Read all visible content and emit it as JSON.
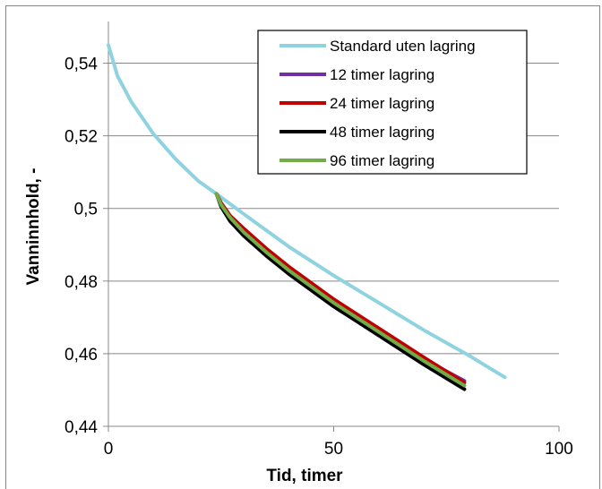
{
  "chart_data": {
    "type": "line",
    "title": "",
    "xlabel": "Tid, timer",
    "ylabel": "Vanninnhold, -",
    "xlim": [
      0,
      100
    ],
    "ylim": [
      0.44,
      0.55
    ],
    "xticks": [
      0,
      50,
      100
    ],
    "xtick_labels": [
      "0",
      "50",
      "100"
    ],
    "yticks": [
      0.44,
      0.46,
      0.48,
      0.5,
      0.52,
      0.54
    ],
    "ytick_labels": [
      "0,44",
      "0,46",
      "0,48",
      "0,5",
      "0,52",
      "0,54"
    ],
    "grid": "horizontal",
    "legend_position": "top-right",
    "series": [
      {
        "name": "Standard uten lagring",
        "color": "#8fd3e0",
        "x": [
          0,
          2,
          5,
          10,
          15,
          20,
          24,
          30,
          40,
          50,
          60,
          70,
          80,
          88
        ],
        "y": [
          0.545,
          0.5365,
          0.5295,
          0.5205,
          0.5135,
          0.5075,
          0.504,
          0.4985,
          0.4895,
          0.4815,
          0.474,
          0.4665,
          0.4595,
          0.4535
        ]
      },
      {
        "name": "12 timer lagring",
        "color": "#7030a0",
        "x": [
          24,
          25,
          27,
          30,
          35,
          40,
          50,
          60,
          70,
          79
        ],
        "y": [
          0.504,
          0.5015,
          0.498,
          0.494,
          0.4885,
          0.4835,
          0.4745,
          0.4665,
          0.4585,
          0.4525
        ]
      },
      {
        "name": "24 timer lagring",
        "color": "#c00000",
        "x": [
          24,
          25,
          27,
          30,
          35,
          40,
          50,
          60,
          70,
          79
        ],
        "y": [
          0.504,
          0.5015,
          0.498,
          0.4945,
          0.489,
          0.484,
          0.475,
          0.467,
          0.459,
          0.452
        ]
      },
      {
        "name": "48 timer lagring",
        "color": "#000000",
        "x": [
          24,
          25,
          27,
          30,
          35,
          40,
          50,
          60,
          70,
          79
        ],
        "y": [
          0.504,
          0.5005,
          0.4965,
          0.4925,
          0.487,
          0.482,
          0.473,
          0.465,
          0.457,
          0.4502
        ]
      },
      {
        "name": "96 timer lagring",
        "color": "#70ad47",
        "x": [
          24,
          25,
          27,
          30,
          35,
          40,
          50,
          60,
          70,
          79
        ],
        "y": [
          0.504,
          0.501,
          0.4975,
          0.4935,
          0.488,
          0.483,
          0.474,
          0.466,
          0.458,
          0.4512
        ]
      }
    ]
  }
}
